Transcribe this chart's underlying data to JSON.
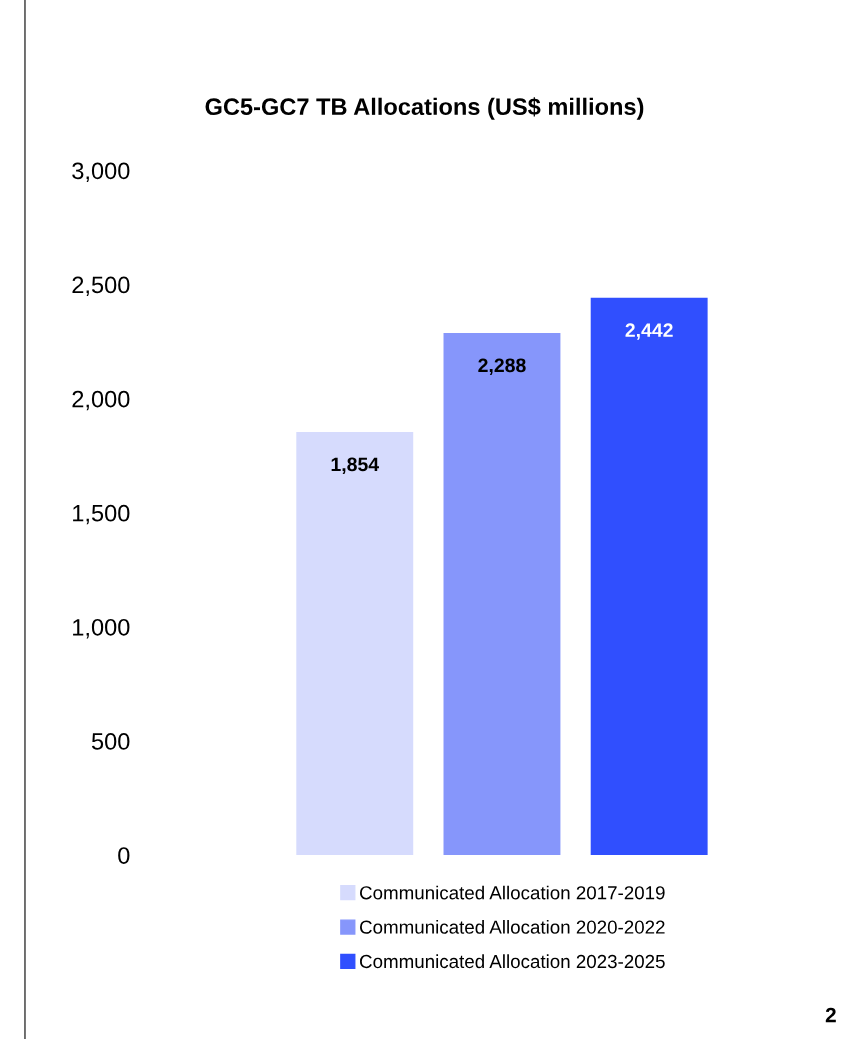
{
  "chart_data": {
    "type": "bar",
    "title": "GC5-GC7 TB Allocations (US$ millions)",
    "categories": [
      null
    ],
    "series": [
      {
        "name": "Communicated Allocation 2017-2019",
        "color": "#d6dbfd",
        "values": [
          1854
        ]
      },
      {
        "name": "Communicated Allocation 2020-2022",
        "color": "#8696fb",
        "values": [
          2288
        ]
      },
      {
        "name": "Communicated Allocation 2023-2025",
        "color": "#304ffe",
        "values": [
          2442
        ]
      }
    ],
    "ylim": [
      0,
      3000
    ],
    "yticks": [
      {
        "value": 0,
        "label": "0"
      },
      {
        "value": 500,
        "label": "500"
      },
      {
        "value": 1000,
        "label": "1,000"
      },
      {
        "value": 1500,
        "label": "1,500"
      },
      {
        "value": 2000,
        "label": "2,000"
      },
      {
        "value": 2500,
        "label": "2,500"
      },
      {
        "value": 3000,
        "label": "3,000"
      }
    ],
    "value_labels": [
      [
        "1,854"
      ],
      [
        "2,288"
      ],
      [
        "2,442"
      ]
    ],
    "grid": false,
    "legend": "bottom",
    "annotations": [
      "2"
    ]
  }
}
